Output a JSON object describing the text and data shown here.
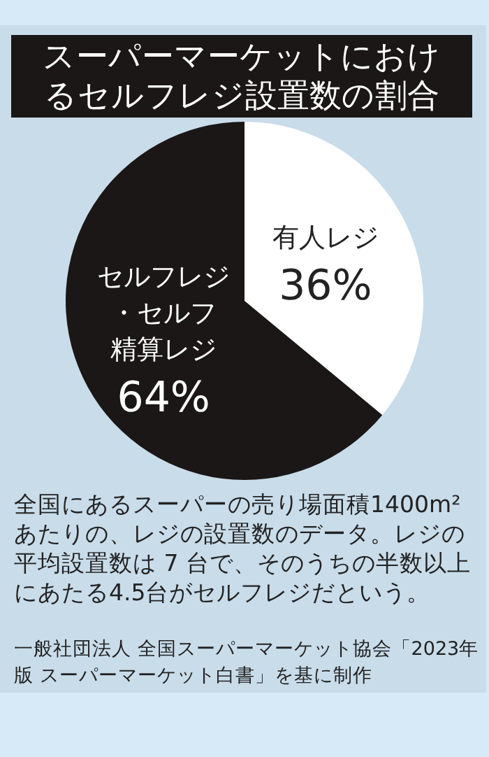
{
  "chart_data": {
    "type": "pie",
    "title": "スーパーマーケットにおけるセルフレジ設置数の割合",
    "categories": [
      "有人レジ",
      "セルフレジ・セルフ精算レジ"
    ],
    "values": [
      36,
      64
    ],
    "colors": [
      "#ffffff",
      "#1a1716"
    ],
    "value_labels": [
      "36%",
      "64%"
    ],
    "annotations": [
      "全国にあるスーパーの売り場面積1400m²あたりの、レジの設置数のデータ。レジの平均設置数は 7 台で、そのうちの半数以上にあたる4.5台がセルフレジだという。",
      "一般社団法人 全国スーパーマーケット協会「2023年版 スーパーマーケット白書」を基に制作"
    ]
  }
}
